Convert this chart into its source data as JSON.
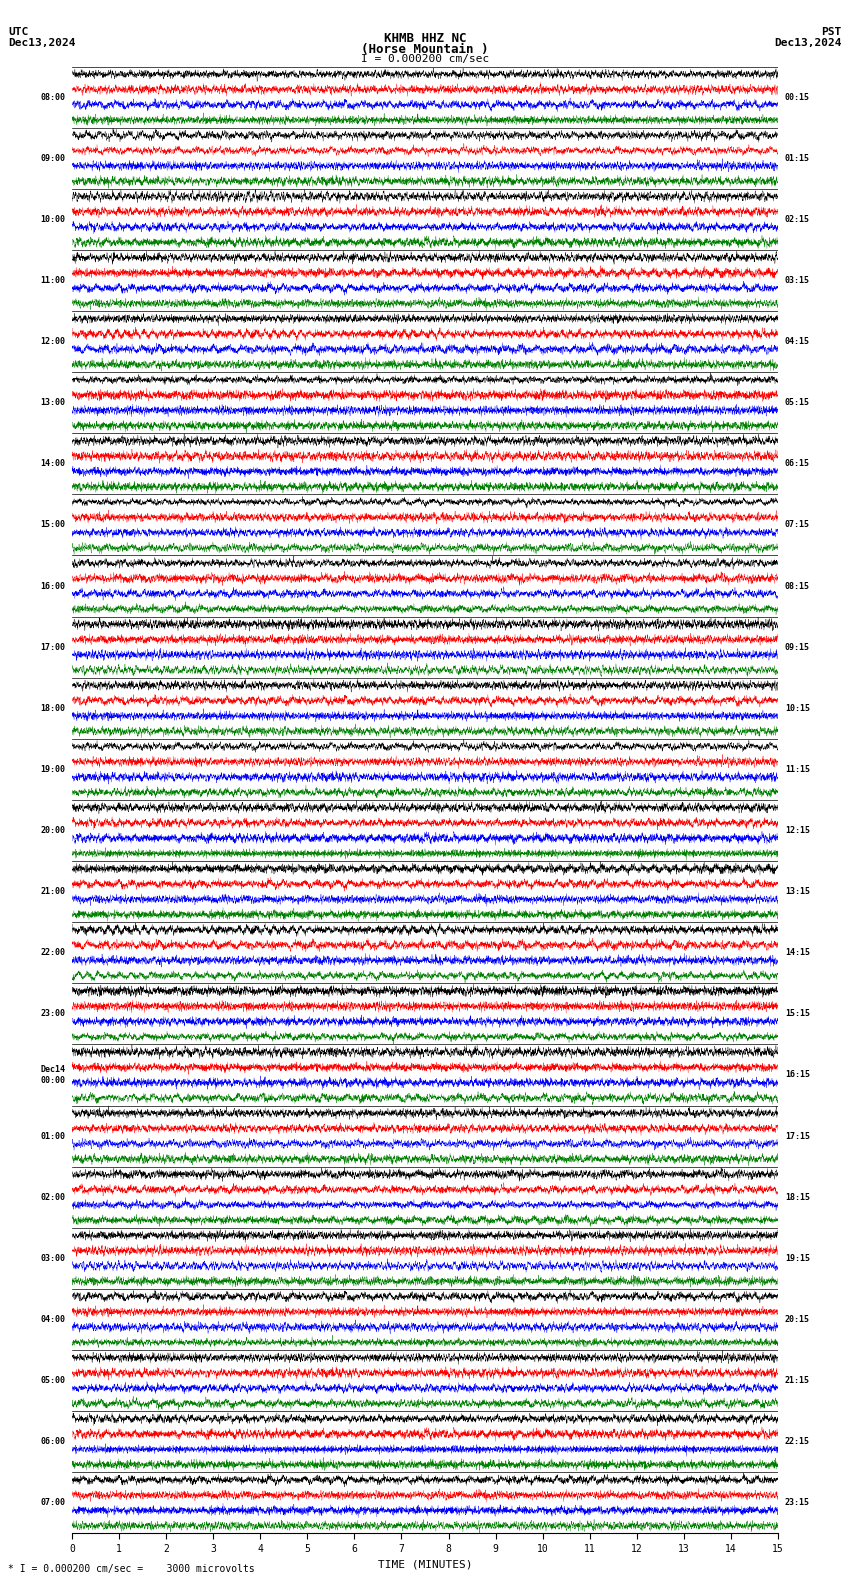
{
  "title_line1": "KHMB HHZ NC",
  "title_line2": "(Horse Mountain )",
  "scale_label": "I = 0.000200 cm/sec",
  "footer_label": "* I = 0.000200 cm/sec =    3000 microvolts",
  "xlabel": "TIME (MINUTES)",
  "left_times": [
    "08:00",
    "09:00",
    "10:00",
    "11:00",
    "12:00",
    "13:00",
    "14:00",
    "15:00",
    "16:00",
    "17:00",
    "18:00",
    "19:00",
    "20:00",
    "21:00",
    "22:00",
    "23:00",
    "Dec14\n00:00",
    "01:00",
    "02:00",
    "03:00",
    "04:00",
    "05:00",
    "06:00",
    "07:00"
  ],
  "right_times": [
    "00:15",
    "01:15",
    "02:15",
    "03:15",
    "04:15",
    "05:15",
    "06:15",
    "07:15",
    "08:15",
    "09:15",
    "10:15",
    "11:15",
    "12:15",
    "13:15",
    "14:15",
    "15:15",
    "16:15",
    "17:15",
    "18:15",
    "19:15",
    "20:15",
    "21:15",
    "22:15",
    "23:15"
  ],
  "n_rows": 24,
  "n_minutes": 15,
  "sub_colors": [
    "black",
    "red",
    "blue",
    "green"
  ],
  "bg_color": "white",
  "fig_width": 8.5,
  "fig_height": 15.84,
  "dpi": 100,
  "noise_seed": 42,
  "xticks": [
    0,
    1,
    2,
    3,
    4,
    5,
    6,
    7,
    8,
    9,
    10,
    11,
    12,
    13,
    14,
    15
  ],
  "xtick_labels": [
    "0",
    "1",
    "2",
    "3",
    "4",
    "5",
    "6",
    "7",
    "8",
    "9",
    "10",
    "11",
    "12",
    "13",
    "14",
    "15"
  ]
}
